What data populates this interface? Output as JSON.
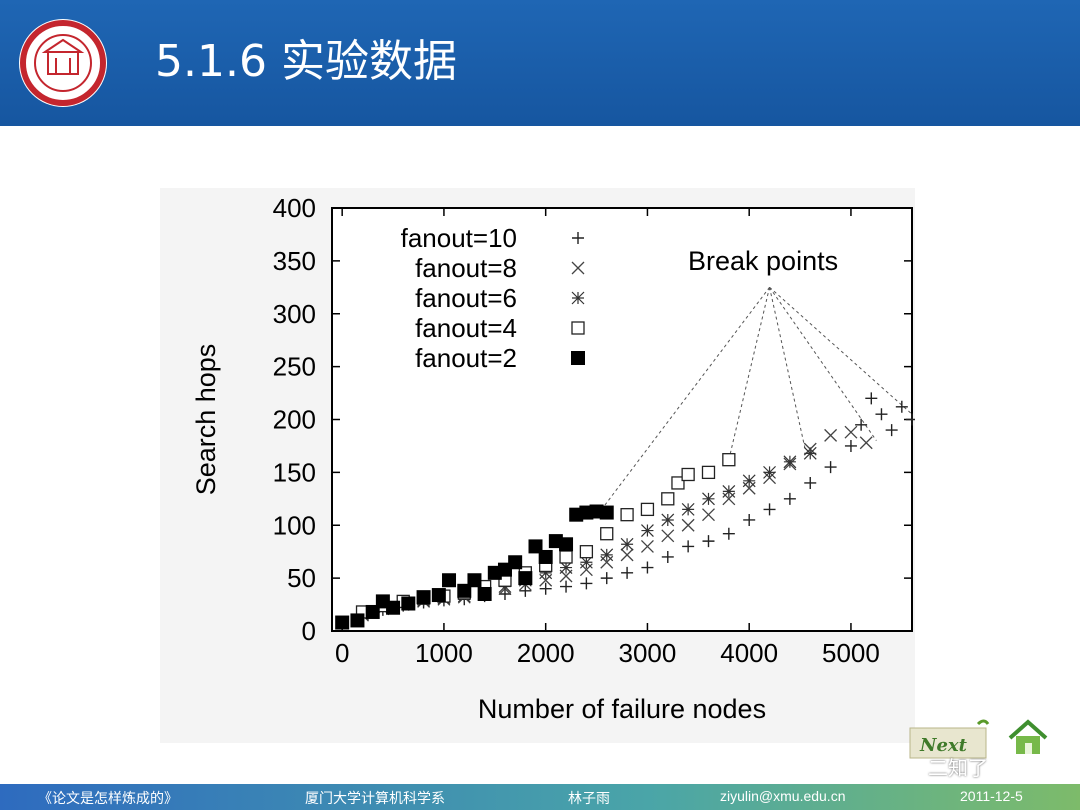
{
  "slide": {
    "title": "5.1.6 实验数据",
    "logo_icon": "university-seal-icon"
  },
  "footer": {
    "book": "《论文是怎样炼成的》",
    "dept": "厦门大学计算机科学系",
    "author": "林子雨",
    "email": "ziyulin@xmu.edu.cn",
    "date": "2011-12-5"
  },
  "nav": {
    "next_label": "Next",
    "watermark": "二知了",
    "next_icon": "next-arrow-icon",
    "home_icon": "home-icon"
  },
  "chart_data": {
    "type": "scatter",
    "xlabel": "Number of failure nodes",
    "ylabel": "Search hops",
    "xlim": [
      -100,
      5600
    ],
    "ylim": [
      0,
      400
    ],
    "xticks": [
      0,
      1000,
      2000,
      3000,
      4000,
      5000
    ],
    "yticks": [
      0,
      50,
      100,
      150,
      200,
      250,
      300,
      350,
      400
    ],
    "legend_position": "top-left",
    "grid": false,
    "annotation": "Break points",
    "break_points": [
      [
        2550,
        115
      ],
      [
        3800,
        162
      ],
      [
        4550,
        172
      ],
      [
        5250,
        180
      ],
      [
        5600,
        205
      ]
    ],
    "annotation_anchor": [
      4200,
      325
    ],
    "series": [
      {
        "name": "fanout=10",
        "marker": "plus",
        "points": [
          [
            0,
            8
          ],
          [
            200,
            14
          ],
          [
            400,
            20
          ],
          [
            600,
            24
          ],
          [
            800,
            27
          ],
          [
            1000,
            29
          ],
          [
            1200,
            30
          ],
          [
            1400,
            33
          ],
          [
            1600,
            35
          ],
          [
            1800,
            38
          ],
          [
            2000,
            40
          ],
          [
            2200,
            42
          ],
          [
            2400,
            45
          ],
          [
            2600,
            50
          ],
          [
            2800,
            55
          ],
          [
            3000,
            60
          ],
          [
            3200,
            70
          ],
          [
            3400,
            80
          ],
          [
            3600,
            85
          ],
          [
            3800,
            92
          ],
          [
            4000,
            105
          ],
          [
            4200,
            115
          ],
          [
            4400,
            125
          ],
          [
            4600,
            140
          ],
          [
            4800,
            155
          ],
          [
            5000,
            175
          ],
          [
            5100,
            195
          ],
          [
            5200,
            220
          ],
          [
            5300,
            205
          ],
          [
            5400,
            190
          ],
          [
            5500,
            212
          ],
          [
            5600,
            200
          ]
        ]
      },
      {
        "name": "fanout=8",
        "marker": "cross",
        "points": [
          [
            0,
            8
          ],
          [
            200,
            15
          ],
          [
            400,
            21
          ],
          [
            600,
            25
          ],
          [
            800,
            28
          ],
          [
            1000,
            30
          ],
          [
            1200,
            32
          ],
          [
            1400,
            36
          ],
          [
            1600,
            40
          ],
          [
            1800,
            44
          ],
          [
            2000,
            48
          ],
          [
            2200,
            52
          ],
          [
            2400,
            58
          ],
          [
            2600,
            65
          ],
          [
            2800,
            72
          ],
          [
            3000,
            80
          ],
          [
            3200,
            90
          ],
          [
            3400,
            100
          ],
          [
            3600,
            110
          ],
          [
            3800,
            125
          ],
          [
            4000,
            135
          ],
          [
            4200,
            145
          ],
          [
            4400,
            158
          ],
          [
            4600,
            172
          ],
          [
            4800,
            185
          ],
          [
            5000,
            188
          ],
          [
            5150,
            178
          ]
        ]
      },
      {
        "name": "fanout=6",
        "marker": "star",
        "points": [
          [
            0,
            8
          ],
          [
            200,
            16
          ],
          [
            400,
            22
          ],
          [
            600,
            26
          ],
          [
            800,
            29
          ],
          [
            1000,
            31
          ],
          [
            1200,
            33
          ],
          [
            1400,
            38
          ],
          [
            1600,
            42
          ],
          [
            1800,
            48
          ],
          [
            2000,
            55
          ],
          [
            2200,
            60
          ],
          [
            2400,
            65
          ],
          [
            2600,
            72
          ],
          [
            2800,
            82
          ],
          [
            3000,
            95
          ],
          [
            3200,
            105
          ],
          [
            3400,
            115
          ],
          [
            3600,
            125
          ],
          [
            3800,
            132
          ],
          [
            4000,
            142
          ],
          [
            4200,
            150
          ],
          [
            4400,
            160
          ],
          [
            4600,
            168
          ]
        ]
      },
      {
        "name": "fanout=4",
        "marker": "open-square",
        "points": [
          [
            0,
            8
          ],
          [
            200,
            18
          ],
          [
            400,
            24
          ],
          [
            600,
            28
          ],
          [
            800,
            31
          ],
          [
            1000,
            33
          ],
          [
            1200,
            36
          ],
          [
            1400,
            42
          ],
          [
            1600,
            48
          ],
          [
            1800,
            55
          ],
          [
            2000,
            62
          ],
          [
            2200,
            70
          ],
          [
            2400,
            75
          ],
          [
            2600,
            92
          ],
          [
            2800,
            110
          ],
          [
            3000,
            115
          ],
          [
            3200,
            125
          ],
          [
            3300,
            140
          ],
          [
            3400,
            148
          ],
          [
            3600,
            150
          ],
          [
            3800,
            162
          ]
        ]
      },
      {
        "name": "fanout=2",
        "marker": "filled-square",
        "points": [
          [
            0,
            8
          ],
          [
            150,
            10
          ],
          [
            300,
            18
          ],
          [
            400,
            28
          ],
          [
            500,
            22
          ],
          [
            650,
            26
          ],
          [
            800,
            32
          ],
          [
            950,
            34
          ],
          [
            1050,
            48
          ],
          [
            1200,
            38
          ],
          [
            1300,
            48
          ],
          [
            1400,
            35
          ],
          [
            1500,
            55
          ],
          [
            1600,
            58
          ],
          [
            1700,
            65
          ],
          [
            1800,
            50
          ],
          [
            1900,
            80
          ],
          [
            2000,
            70
          ],
          [
            2100,
            85
          ],
          [
            2200,
            82
          ],
          [
            2300,
            110
          ],
          [
            2400,
            112
          ],
          [
            2500,
            113
          ],
          [
            2600,
            112
          ]
        ]
      }
    ]
  }
}
